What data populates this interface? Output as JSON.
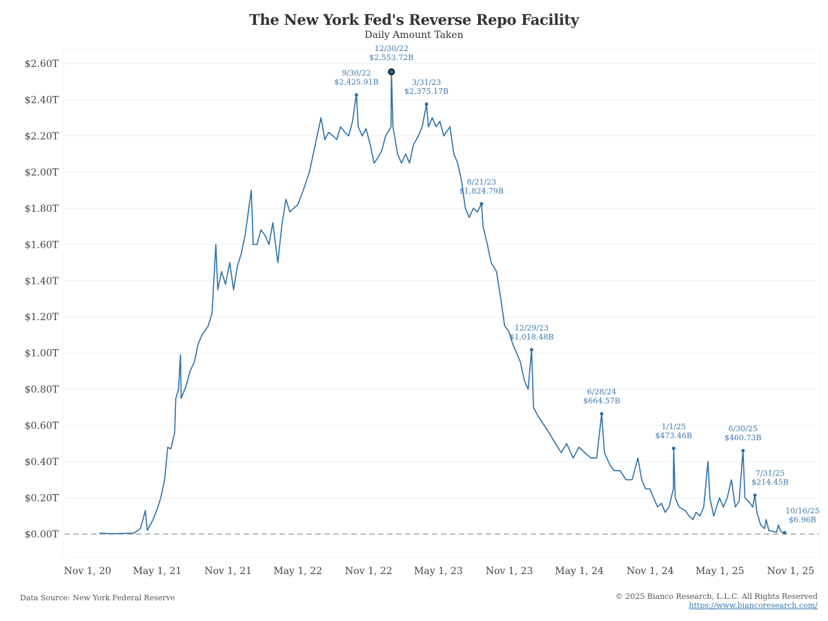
{
  "header": {
    "title": "The New York Fed's Reverse Repo Facility",
    "subtitle": "Daily Amount Taken"
  },
  "footer": {
    "source": "Data Source: New York Federal Reserve",
    "copyright": "© 2025 Bianco Research, L.L.C. All Rights Reserved",
    "link": "https://www.biancoresearch.com/"
  },
  "colors": {
    "line": "#2a6fa8",
    "annotation": "#3a78b0",
    "grid": "#efefef",
    "zero_line": "#bbbbbb"
  },
  "chart_data": {
    "type": "line",
    "title": "The New York Fed's Reverse Repo Facility",
    "subtitle": "Daily Amount Taken",
    "xlabel": "",
    "ylabel": "",
    "units": "USD trillions",
    "ylim": [
      0,
      2.6
    ],
    "xlim": [
      "2020-11-01",
      "2025-11-01"
    ],
    "grid": true,
    "legend": "none",
    "y_ticks": [
      "$0.00T",
      "$0.20T",
      "$0.40T",
      "$0.60T",
      "$0.80T",
      "$1.00T",
      "$1.20T",
      "$1.40T",
      "$1.60T",
      "$1.80T",
      "$2.00T",
      "$2.20T",
      "$2.40T",
      "$2.60T"
    ],
    "y_tick_values": [
      0,
      0.2,
      0.4,
      0.6,
      0.8,
      1.0,
      1.2,
      1.4,
      1.6,
      1.8,
      2.0,
      2.2,
      2.4,
      2.6
    ],
    "x_ticks": [
      "Nov 1, 20",
      "May 1, 21",
      "Nov 1, 21",
      "May 1, 22",
      "Nov 1, 22",
      "May 1, 23",
      "Nov 1, 23",
      "May 1, 24",
      "Nov 1, 24",
      "May 1, 25",
      "Nov 1, 25"
    ],
    "x_tick_dates": [
      "2020-11-01",
      "2021-05-01",
      "2021-11-01",
      "2022-05-01",
      "2022-11-01",
      "2023-05-01",
      "2023-11-01",
      "2024-05-01",
      "2024-11-01",
      "2025-05-01",
      "2025-11-01"
    ],
    "series": [
      {
        "name": "Reverse Repo Daily Amount",
        "points": [
          [
            "2020-12-01",
            0.005
          ],
          [
            "2021-01-01",
            0.002
          ],
          [
            "2021-02-01",
            0.003
          ],
          [
            "2021-03-01",
            0.005
          ],
          [
            "2021-03-18",
            0.03
          ],
          [
            "2021-03-31",
            0.13
          ],
          [
            "2021-04-05",
            0.02
          ],
          [
            "2021-04-20",
            0.08
          ],
          [
            "2021-05-01",
            0.14
          ],
          [
            "2021-05-10",
            0.2
          ],
          [
            "2021-05-20",
            0.3
          ],
          [
            "2021-05-28",
            0.48
          ],
          [
            "2021-06-05",
            0.47
          ],
          [
            "2021-06-15",
            0.56
          ],
          [
            "2021-06-18",
            0.75
          ],
          [
            "2021-06-25",
            0.8
          ],
          [
            "2021-06-30",
            0.99
          ],
          [
            "2021-07-02",
            0.75
          ],
          [
            "2021-07-15",
            0.82
          ],
          [
            "2021-07-25",
            0.9
          ],
          [
            "2021-08-05",
            0.95
          ],
          [
            "2021-08-15",
            1.05
          ],
          [
            "2021-08-25",
            1.1
          ],
          [
            "2021-09-01",
            1.12
          ],
          [
            "2021-09-10",
            1.15
          ],
          [
            "2021-09-20",
            1.22
          ],
          [
            "2021-09-30",
            1.6
          ],
          [
            "2021-10-05",
            1.35
          ],
          [
            "2021-10-15",
            1.45
          ],
          [
            "2021-10-25",
            1.38
          ],
          [
            "2021-11-05",
            1.5
          ],
          [
            "2021-11-15",
            1.35
          ],
          [
            "2021-11-25",
            1.48
          ],
          [
            "2021-12-05",
            1.55
          ],
          [
            "2021-12-15",
            1.65
          ],
          [
            "2021-12-31",
            1.9
          ],
          [
            "2022-01-05",
            1.6
          ],
          [
            "2022-01-15",
            1.6
          ],
          [
            "2022-01-25",
            1.68
          ],
          [
            "2022-02-05",
            1.65
          ],
          [
            "2022-02-15",
            1.6
          ],
          [
            "2022-02-25",
            1.72
          ],
          [
            "2022-03-10",
            1.5
          ],
          [
            "2022-03-20",
            1.7
          ],
          [
            "2022-03-31",
            1.85
          ],
          [
            "2022-04-10",
            1.78
          ],
          [
            "2022-04-20",
            1.8
          ],
          [
            "2022-05-01",
            1.82
          ],
          [
            "2022-05-15",
            1.9
          ],
          [
            "2022-05-31",
            2.0
          ],
          [
            "2022-06-10",
            2.1
          ],
          [
            "2022-06-20",
            2.2
          ],
          [
            "2022-06-30",
            2.3
          ],
          [
            "2022-07-10",
            2.18
          ],
          [
            "2022-07-20",
            2.22
          ],
          [
            "2022-07-31",
            2.2
          ],
          [
            "2022-08-10",
            2.18
          ],
          [
            "2022-08-20",
            2.25
          ],
          [
            "2022-08-31",
            2.22
          ],
          [
            "2022-09-10",
            2.2
          ],
          [
            "2022-09-20",
            2.28
          ],
          [
            "2022-09-30",
            2.43
          ],
          [
            "2022-10-05",
            2.25
          ],
          [
            "2022-10-15",
            2.2
          ],
          [
            "2022-10-25",
            2.24
          ],
          [
            "2022-11-05",
            2.15
          ],
          [
            "2022-11-15",
            2.05
          ],
          [
            "2022-11-25",
            2.08
          ],
          [
            "2022-12-05",
            2.12
          ],
          [
            "2022-12-15",
            2.2
          ],
          [
            "2022-12-29",
            2.25
          ],
          [
            "2022-12-30",
            2.554
          ],
          [
            "2023-01-03",
            2.25
          ],
          [
            "2023-01-15",
            2.1
          ],
          [
            "2023-01-25",
            2.05
          ],
          [
            "2023-02-05",
            2.1
          ],
          [
            "2023-02-15",
            2.05
          ],
          [
            "2023-02-25",
            2.15
          ],
          [
            "2023-03-10",
            2.2
          ],
          [
            "2023-03-20",
            2.25
          ],
          [
            "2023-03-31",
            2.375
          ],
          [
            "2023-04-05",
            2.25
          ],
          [
            "2023-04-15",
            2.3
          ],
          [
            "2023-04-25",
            2.25
          ],
          [
            "2023-05-05",
            2.28
          ],
          [
            "2023-05-15",
            2.2
          ],
          [
            "2023-05-31",
            2.25
          ],
          [
            "2023-06-10",
            2.1
          ],
          [
            "2023-06-20",
            2.05
          ],
          [
            "2023-06-30",
            1.95
          ],
          [
            "2023-07-10",
            1.8
          ],
          [
            "2023-07-20",
            1.75
          ],
          [
            "2023-07-31",
            1.8
          ],
          [
            "2023-08-10",
            1.78
          ],
          [
            "2023-08-21",
            1.825
          ],
          [
            "2023-08-25",
            1.7
          ],
          [
            "2023-09-05",
            1.6
          ],
          [
            "2023-09-15",
            1.5
          ],
          [
            "2023-09-29",
            1.45
          ],
          [
            "2023-10-10",
            1.3
          ],
          [
            "2023-10-20",
            1.15
          ],
          [
            "2023-10-31",
            1.12
          ],
          [
            "2023-11-10",
            1.05
          ],
          [
            "2023-11-20",
            1.0
          ],
          [
            "2023-11-30",
            0.95
          ],
          [
            "2023-12-10",
            0.85
          ],
          [
            "2023-12-20",
            0.8
          ],
          [
            "2023-12-29",
            1.018
          ],
          [
            "2024-01-03",
            0.7
          ],
          [
            "2024-01-15",
            0.65
          ],
          [
            "2024-01-31",
            0.6
          ],
          [
            "2024-02-15",
            0.55
          ],
          [
            "2024-02-29",
            0.5
          ],
          [
            "2024-03-15",
            0.45
          ],
          [
            "2024-03-29",
            0.5
          ],
          [
            "2024-04-15",
            0.42
          ],
          [
            "2024-04-30",
            0.48
          ],
          [
            "2024-05-15",
            0.45
          ],
          [
            "2024-05-31",
            0.42
          ],
          [
            "2024-06-15",
            0.42
          ],
          [
            "2024-06-28",
            0.665
          ],
          [
            "2024-07-05",
            0.45
          ],
          [
            "2024-07-20",
            0.38
          ],
          [
            "2024-07-31",
            0.35
          ],
          [
            "2024-08-15",
            0.35
          ],
          [
            "2024-08-30",
            0.3
          ],
          [
            "2024-09-15",
            0.3
          ],
          [
            "2024-09-30",
            0.42
          ],
          [
            "2024-10-10",
            0.3
          ],
          [
            "2024-10-20",
            0.25
          ],
          [
            "2024-10-31",
            0.25
          ],
          [
            "2024-11-10",
            0.2
          ],
          [
            "2024-11-20",
            0.15
          ],
          [
            "2024-11-30",
            0.17
          ],
          [
            "2024-12-10",
            0.12
          ],
          [
            "2024-12-20",
            0.15
          ],
          [
            "2024-12-31",
            0.25
          ],
          [
            "2025-01-01",
            0.4735
          ],
          [
            "2025-01-05",
            0.2
          ],
          [
            "2025-01-15",
            0.15
          ],
          [
            "2025-01-31",
            0.13
          ],
          [
            "2025-02-10",
            0.1
          ],
          [
            "2025-02-20",
            0.08
          ],
          [
            "2025-02-28",
            0.12
          ],
          [
            "2025-03-10",
            0.1
          ],
          [
            "2025-03-20",
            0.15
          ],
          [
            "2025-03-31",
            0.4
          ],
          [
            "2025-04-05",
            0.2
          ],
          [
            "2025-04-15",
            0.1
          ],
          [
            "2025-04-30",
            0.2
          ],
          [
            "2025-05-10",
            0.15
          ],
          [
            "2025-05-20",
            0.2
          ],
          [
            "2025-05-31",
            0.3
          ],
          [
            "2025-06-10",
            0.15
          ],
          [
            "2025-06-20",
            0.18
          ],
          [
            "2025-06-30",
            0.4607
          ],
          [
            "2025-07-05",
            0.2
          ],
          [
            "2025-07-15",
            0.18
          ],
          [
            "2025-07-25",
            0.15
          ],
          [
            "2025-07-31",
            0.2145
          ],
          [
            "2025-08-05",
            0.12
          ],
          [
            "2025-08-15",
            0.05
          ],
          [
            "2025-08-25",
            0.03
          ],
          [
            "2025-08-29",
            0.08
          ],
          [
            "2025-09-05",
            0.02
          ],
          [
            "2025-09-15",
            0.015
          ],
          [
            "2025-09-25",
            0.01
          ],
          [
            "2025-09-30",
            0.05
          ],
          [
            "2025-10-05",
            0.02
          ],
          [
            "2025-10-10",
            0.01
          ],
          [
            "2025-10-16",
            0.007
          ]
        ]
      }
    ],
    "annotations": [
      {
        "date": "2022-09-30",
        "label_date": "9/30/22",
        "label_value": "$2,425.91B",
        "value": 2.42591
      },
      {
        "date": "2022-12-30",
        "label_date": "12/30/22",
        "label_value": "$2,553.72B",
        "value": 2.55372,
        "highlight": true
      },
      {
        "date": "2023-03-31",
        "label_date": "3/31/23",
        "label_value": "$2,375.17B",
        "value": 2.37517
      },
      {
        "date": "2023-08-21",
        "label_date": "8/21/23",
        "label_value": "$1,824.79B",
        "value": 1.82479
      },
      {
        "date": "2023-12-29",
        "label_date": "12/29/23",
        "label_value": "$1,018.48B",
        "value": 1.01848
      },
      {
        "date": "2024-06-28",
        "label_date": "6/28/24",
        "label_value": "$664.57B",
        "value": 0.66457
      },
      {
        "date": "2025-01-01",
        "label_date": "1/1/25",
        "label_value": "$473.46B",
        "value": 0.47346
      },
      {
        "date": "2025-06-30",
        "label_date": "6/30/25",
        "label_value": "$460.73B",
        "value": 0.46073
      },
      {
        "date": "2025-07-31",
        "label_date": "7/31/25",
        "label_value": "$214.45B",
        "value": 0.21445
      },
      {
        "date": "2025-10-16",
        "label_date": "10/16/25",
        "label_value": "$6.96B",
        "value": 0.00696
      }
    ]
  }
}
